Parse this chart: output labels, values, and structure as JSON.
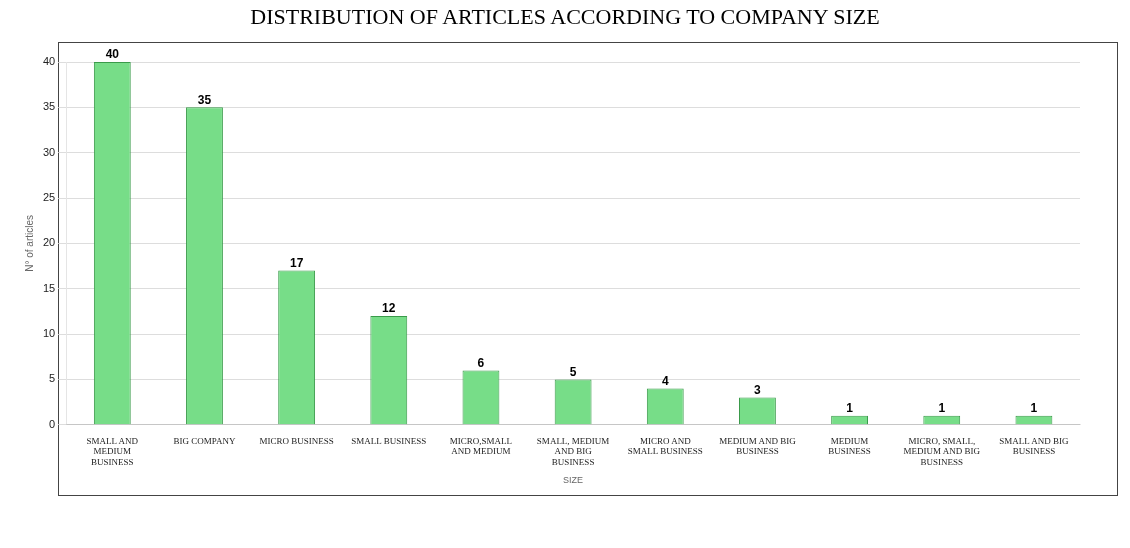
{
  "chart_data": {
    "type": "bar",
    "title": "DISTRIBUTION OF ARTICLES ACCORDING TO COMPANY SIZE",
    "xlabel": "SIZE",
    "ylabel": "N° of articles",
    "categories": [
      "SMALL AND MEDIUM BUSINESS",
      "BIG COMPANY",
      "MICRO BUSINESS",
      "SMALL BUSINESS",
      "MICRO,SMALL AND MEDIUM",
      "SMALL, MEDIUM AND BIG BUSINESS",
      "MICRO AND SMALL BUSINESS",
      "MEDIUM AND BIG BUSINESS",
      "MEDIUM BUSINESS",
      "MICRO, SMALL, MEDIUM AND BIG BUSINESS",
      "SMALL AND BIG BUSINESS"
    ],
    "values": [
      40,
      35,
      17,
      12,
      6,
      5,
      4,
      3,
      1,
      1,
      1
    ],
    "color": "#77dd88",
    "ylim": [
      0,
      40
    ],
    "yticks": [
      0,
      5,
      10,
      15,
      20,
      25,
      30,
      35,
      40
    ],
    "grid": "y",
    "data_labels": true
  }
}
